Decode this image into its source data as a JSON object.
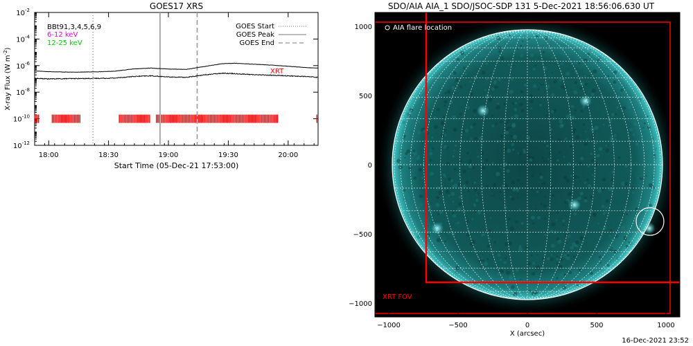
{
  "footer_timestamp": "16-Dec-2021 23:52",
  "chart_data": [
    {
      "type": "line",
      "title": "GOES17 XRS",
      "xlabel": "Start Time (05-Dec-21 17:53:00)",
      "ylabel": "X-ray Flux (W m",
      "ylabel_sup": "-2",
      "ylabel_close": ")",
      "log_y": true,
      "xlim_hours": [
        17.883,
        20.25
      ],
      "ylim": [
        1e-12,
        0.01
      ],
      "x_ticks": [
        {
          "label": "18:00",
          "hour": 18.0
        },
        {
          "label": "18:30",
          "hour": 18.5
        },
        {
          "label": "19:00",
          "hour": 19.0
        },
        {
          "label": "19:30",
          "hour": 19.5
        },
        {
          "label": "20:00",
          "hour": 20.0
        }
      ],
      "y_ticks": [
        {
          "base": "10",
          "exp": "-12",
          "value": 1e-12
        },
        {
          "base": "10",
          "exp": "-10",
          "value": 1e-10
        },
        {
          "base": "10",
          "exp": "-8",
          "value": 1e-08
        },
        {
          "base": "10",
          "exp": "-6",
          "value": 1e-06
        },
        {
          "base": "10",
          "exp": "-4",
          "value": 0.0001
        },
        {
          "base": "10",
          "exp": "-2",
          "value": 0.01
        }
      ],
      "series": [
        {
          "name": "6-12 keV",
          "color": "#000000",
          "x": [
            17.883,
            18.0,
            18.2,
            18.4,
            18.55,
            18.7,
            18.85,
            19.0,
            19.15,
            19.3,
            19.45,
            19.55,
            19.7,
            19.85,
            20.0,
            20.15,
            20.25
          ],
          "y": [
            4e-07,
            3.5e-07,
            3.2e-07,
            3.4e-07,
            3.8e-07,
            5.5e-07,
            6.5e-07,
            5.5e-07,
            5.2e-07,
            8.5e-07,
            1.4e-06,
            1.5e-06,
            1.3e-06,
            1.1e-06,
            9e-07,
            7e-07,
            6.5e-07
          ]
        },
        {
          "name": "12-25 keV",
          "color": "#000000",
          "x": [
            17.883,
            18.0,
            18.2,
            18.4,
            18.55,
            18.7,
            18.85,
            19.0,
            19.15,
            19.3,
            19.45,
            19.55,
            19.7,
            19.85,
            20.0,
            20.15,
            20.25
          ],
          "y": [
            1.1e-07,
            1e-07,
            1.05e-07,
            1.1e-07,
            1.15e-07,
            1.5e-07,
            1.7e-07,
            1.4e-07,
            1.3e-07,
            2e-07,
            2.7e-07,
            2.5e-07,
            2.1e-07,
            1.9e-07,
            1.7e-07,
            1.5e-07,
            1.3e-07
          ]
        }
      ],
      "text_labels": {
        "instrument_overlap": "BBt91,3,4,5,6,9",
        "channel_low": "6-12 keV",
        "channel_low_color": "#dd00dd",
        "channel_high": "12-25 keV",
        "channel_high_color": "#00cc00",
        "xrt_label": "XRT",
        "xrt_color": "#ff0000"
      },
      "legend": {
        "placement": "top-right",
        "entries": [
          {
            "label": "GOES Start",
            "style": "dotted"
          },
          {
            "label": "GOES Peak",
            "style": "solid"
          },
          {
            "label": "GOES End",
            "style": "dashed"
          }
        ]
      },
      "vertical_markers": [
        {
          "kind": "GOES Start",
          "hour": 18.37
        },
        {
          "kind": "GOES Peak",
          "hour": 18.93
        },
        {
          "kind": "GOES End",
          "hour": 19.24
        }
      ],
      "xrt_coverage": {
        "level": 1e-10,
        "color": "#ff0000",
        "segments_hours": [
          [
            17.883,
            17.92
          ],
          [
            18.03,
            18.27
          ],
          [
            18.59,
            18.85
          ],
          [
            18.9,
            19.92
          ],
          [
            20.24,
            20.25
          ]
        ]
      }
    },
    {
      "type": "scatter",
      "title": "SDO/AIA AIA_1 SDO/JSOC-SDP 131  5-Dec-2021 18:56:06.630 UT",
      "xlabel": "X (arcsec)",
      "ylabel": "",
      "xlim": [
        -1100,
        1100
      ],
      "ylim": [
        -1100,
        1100
      ],
      "x_ticks": [
        -1000,
        -500,
        0,
        500,
        1000
      ],
      "y_ticks": [
        -1000,
        -500,
        0,
        500,
        1000
      ],
      "solar_radius_arcsec": 975,
      "grid_step_deg": 10,
      "disk_color": "#0f5656",
      "limb_color": "#3cc8c8",
      "legend_entries": [
        {
          "symbol": "circle",
          "label": "AIA flare location"
        }
      ],
      "flare_location": {
        "x": 885,
        "y": -410,
        "radius": 100
      },
      "bright_regions": [
        {
          "x": 880,
          "y": -460
        },
        {
          "x": 340,
          "y": -290
        },
        {
          "x": -650,
          "y": -460
        },
        {
          "x": -320,
          "y": 390
        },
        {
          "x": 420,
          "y": 460
        }
      ],
      "fov_boxes": [
        {
          "label": "XRT FOV",
          "color": "#ff0000",
          "x0": -1100,
          "x1": 1030,
          "y0": -1075,
          "y1": 1030
        },
        {
          "label": "",
          "color": "#ff0000",
          "x0": -730,
          "x1": 1150,
          "y0": -850,
          "y1": 1150
        }
      ],
      "fov_label": "XRT FOV"
    }
  ]
}
